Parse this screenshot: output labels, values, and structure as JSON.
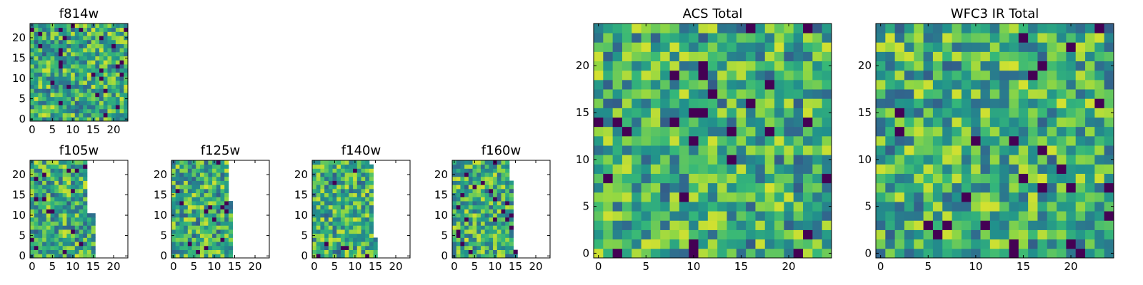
{
  "colormap": {
    "name": "viridis",
    "colors": [
      "#440154",
      "#31688e",
      "#21918c",
      "#35b779",
      "#90d743",
      "#fde725"
    ]
  },
  "chart_data": [
    {
      "type": "heatmap",
      "panel_id": "f814w",
      "title": "f814w",
      "grid": false,
      "shape": [
        24,
        24
      ],
      "xlim": [
        0,
        24
      ],
      "ylim": [
        0,
        24
      ],
      "xticks": [
        0,
        5,
        10,
        15,
        20
      ],
      "yticks": [
        0,
        5,
        10,
        15,
        20
      ],
      "column_coverage": [
        24,
        24,
        24,
        24,
        24,
        24,
        24,
        24,
        24,
        24,
        24,
        24,
        24,
        24,
        24,
        24,
        24,
        24,
        24,
        24,
        24,
        24,
        24,
        24
      ],
      "seed": 11
    },
    {
      "type": "heatmap",
      "panel_id": "f105w",
      "title": "f105w",
      "grid": false,
      "shape": [
        24,
        24
      ],
      "xlim": [
        0,
        24
      ],
      "ylim": [
        0,
        24
      ],
      "xticks": [
        0,
        5,
        10,
        15,
        20
      ],
      "yticks": [
        0,
        5,
        10,
        15,
        20
      ],
      "column_coverage": [
        24,
        24,
        24,
        24,
        24,
        24,
        24,
        24,
        24,
        24,
        24,
        24,
        24,
        24,
        11,
        11,
        0,
        0,
        0,
        0,
        0,
        0,
        0,
        0
      ],
      "seed": 23
    },
    {
      "type": "heatmap",
      "panel_id": "f125w",
      "title": "f125w",
      "grid": false,
      "shape": [
        24,
        24
      ],
      "xlim": [
        0,
        24
      ],
      "ylim": [
        0,
        24
      ],
      "xticks": [
        0,
        5,
        10,
        15,
        20
      ],
      "yticks": [
        0,
        5,
        10,
        15,
        20
      ],
      "column_coverage": [
        24,
        24,
        24,
        24,
        24,
        24,
        24,
        24,
        24,
        24,
        24,
        24,
        24,
        24,
        14,
        0,
        0,
        0,
        0,
        0,
        0,
        0,
        0,
        0
      ],
      "seed": 37
    },
    {
      "type": "heatmap",
      "panel_id": "f140w",
      "title": "f140w",
      "grid": false,
      "shape": [
        24,
        24
      ],
      "xlim": [
        0,
        24
      ],
      "ylim": [
        0,
        24
      ],
      "xticks": [
        0,
        5,
        10,
        15,
        20
      ],
      "yticks": [
        0,
        5,
        10,
        15,
        20
      ],
      "column_coverage": [
        24,
        24,
        24,
        24,
        24,
        24,
        24,
        24,
        24,
        24,
        24,
        24,
        24,
        24,
        23,
        5,
        0,
        0,
        0,
        0,
        0,
        0,
        0,
        0
      ],
      "seed": 41
    },
    {
      "type": "heatmap",
      "panel_id": "f160w",
      "title": "f160w",
      "grid": false,
      "shape": [
        24,
        24
      ],
      "xlim": [
        0,
        24
      ],
      "ylim": [
        0,
        24
      ],
      "xticks": [
        0,
        5,
        10,
        15,
        20
      ],
      "yticks": [
        0,
        5,
        10,
        15,
        20
      ],
      "column_coverage": [
        24,
        24,
        24,
        24,
        24,
        24,
        24,
        24,
        24,
        24,
        24,
        24,
        24,
        24,
        19,
        2,
        0,
        0,
        0,
        0,
        0,
        0,
        0,
        0
      ],
      "seed": 53
    },
    {
      "type": "heatmap",
      "panel_id": "acs_total",
      "title": "ACS Total",
      "grid": false,
      "shape": [
        25,
        25
      ],
      "xlim": [
        0,
        25
      ],
      "ylim": [
        0,
        25
      ],
      "xticks": [
        0,
        5,
        10,
        15,
        20
      ],
      "yticks": [
        0,
        5,
        10,
        15,
        20
      ],
      "column_coverage": [
        25,
        25,
        25,
        25,
        25,
        25,
        25,
        25,
        25,
        25,
        25,
        25,
        25,
        25,
        25,
        25,
        25,
        25,
        25,
        25,
        25,
        25,
        25,
        25,
        25
      ],
      "seed": 67
    },
    {
      "type": "heatmap",
      "panel_id": "wfc3_ir_total",
      "title": "WFC3 IR Total",
      "grid": false,
      "shape": [
        25,
        25
      ],
      "xlim": [
        0,
        25
      ],
      "ylim": [
        0,
        25
      ],
      "xticks": [
        0,
        5,
        10,
        15,
        20
      ],
      "yticks": [
        0,
        5,
        10,
        15,
        20
      ],
      "column_coverage": [
        25,
        25,
        25,
        25,
        25,
        25,
        25,
        25,
        25,
        25,
        25,
        25,
        25,
        25,
        25,
        25,
        25,
        25,
        25,
        25,
        25,
        25,
        25,
        25,
        25
      ],
      "seed": 79
    }
  ]
}
